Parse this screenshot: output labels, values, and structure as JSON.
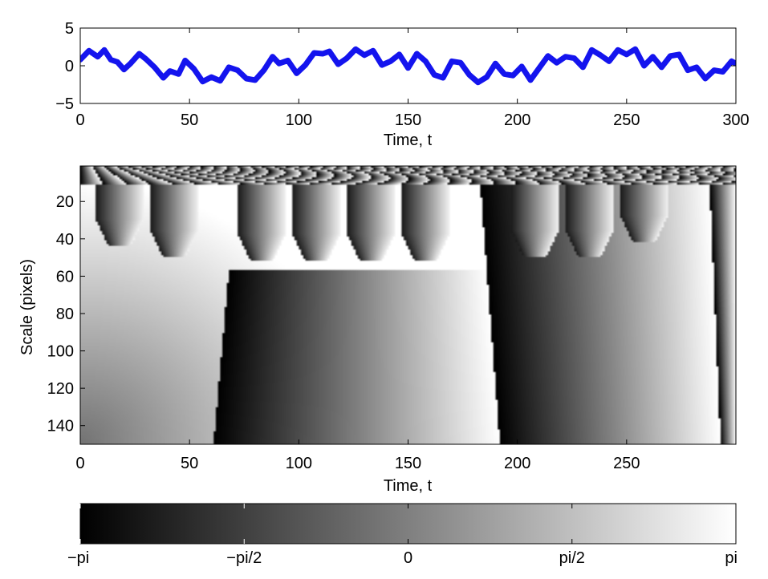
{
  "chart_data": [
    {
      "type": "line",
      "xlabel": "Time, t",
      "ylabel": "",
      "xlim": [
        0,
        300
      ],
      "ylim": [
        -5,
        5
      ],
      "xticks": [
        0,
        50,
        100,
        150,
        200,
        250,
        300
      ],
      "yticks": [
        -5,
        0,
        5
      ],
      "ytick_labels": [
        "−5",
        "0",
        "5"
      ],
      "line_color": "#1414ee",
      "series": [
        {
          "x": [
            0,
            4,
            8,
            11,
            14,
            17,
            20,
            23,
            27,
            30,
            34,
            38,
            41,
            45,
            48,
            52,
            56,
            60,
            64,
            68,
            72,
            76,
            80,
            84,
            88,
            91,
            95,
            99,
            103,
            107,
            111,
            114,
            118,
            122,
            126,
            130,
            134,
            138,
            142,
            146,
            150,
            154,
            158,
            162,
            166,
            170,
            174,
            178,
            182,
            186,
            190,
            194,
            198,
            202,
            206,
            210,
            214,
            218,
            222,
            226,
            230,
            234,
            238,
            242,
            246,
            250,
            254,
            258,
            262,
            266,
            270,
            274,
            278,
            282,
            286,
            290,
            294,
            298,
            300
          ],
          "y": [
            0.8,
            2.0,
            1.2,
            2.1,
            0.8,
            0.5,
            -0.5,
            0.3,
            1.6,
            0.9,
            -0.2,
            -1.6,
            -0.7,
            -1.1,
            0.7,
            -0.4,
            -2.1,
            -1.5,
            -2.0,
            -0.2,
            -0.6,
            -1.7,
            -1.9,
            -0.6,
            1.2,
            0.3,
            0.7,
            -1.0,
            0.1,
            1.7,
            1.6,
            1.9,
            0.2,
            1.0,
            2.2,
            1.4,
            2.0,
            0.1,
            0.6,
            1.5,
            -0.3,
            1.6,
            0.6,
            -1.2,
            -1.6,
            0.6,
            0.4,
            -1.2,
            -2.2,
            -1.5,
            0.3,
            -1.1,
            -1.3,
            -0.1,
            -1.9,
            -0.3,
            1.3,
            0.4,
            1.2,
            1.0,
            -0.2,
            2.1,
            1.4,
            0.6,
            2.1,
            1.5,
            2.2,
            0.0,
            1.2,
            -0.2,
            1.3,
            1.5,
            -0.6,
            -0.2,
            -1.7,
            -0.6,
            -0.8,
            0.6,
            0.3
          ]
        }
      ]
    },
    {
      "type": "heatmap",
      "xlabel": "Time, t",
      "ylabel": "Scale (pixels)",
      "xlim": [
        0,
        300
      ],
      "ylim": [
        150,
        1
      ],
      "xticks": [
        0,
        50,
        100,
        150,
        200,
        250
      ],
      "yticks": [
        20,
        40,
        60,
        80,
        100,
        120,
        140
      ],
      "colormap": "gray",
      "value_range": [
        -3.1416,
        3.1416
      ],
      "phase_wraps": [
        {
          "t_bottom": 61,
          "t_top": 68,
          "scale_top": 57
        },
        {
          "t_bottom": 192,
          "t_top": 183,
          "scale_top": 10
        },
        {
          "t_bottom": 293,
          "t_top": 288,
          "scale_top": 10
        }
      ],
      "fingers": [
        {
          "t_center": 18,
          "scale_end": 44
        },
        {
          "t_center": 43,
          "scale_end": 50
        },
        {
          "t_center": 83,
          "scale_end": 52
        },
        {
          "t_center": 108,
          "scale_end": 52
        },
        {
          "t_center": 133,
          "scale_end": 52
        },
        {
          "t_center": 158,
          "scale_end": 52
        },
        {
          "t_center": 208,
          "scale_end": 50
        },
        {
          "t_center": 233,
          "scale_end": 50
        },
        {
          "t_center": 258,
          "scale_end": 42
        }
      ],
      "fine_scale_limit": 10
    },
    {
      "type": "colorbar",
      "colormap": "gray",
      "range": [
        -3.1416,
        3.1416
      ],
      "tick_values": [
        -3.1416,
        -1.5708,
        0,
        1.5708,
        3.1416
      ],
      "tick_labels": [
        "−pi",
        "−pi/2",
        "0",
        "pi/2",
        "pi"
      ]
    }
  ]
}
